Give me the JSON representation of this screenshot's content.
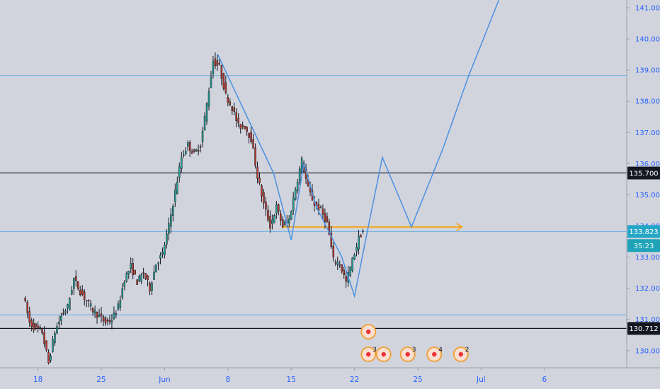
{
  "colors": {
    "background": "#d1d4dc",
    "up_candle": "#26a69a",
    "down_candle": "#c0392b",
    "wick": "#131722",
    "projection": "#4a90e2",
    "thin_level": "#6aaee6",
    "support": "#f5a623",
    "key_level": "#131722",
    "current_badge": "#26a6c6",
    "timer_badge": "#1ea3b8",
    "scale_text": "#2962ff",
    "event_fill": "#f9e0d3",
    "event_ring": "#f0a23c",
    "event_dot": "#e8323c"
  },
  "chart_data": {
    "type": "candlestick",
    "title": "",
    "x_axis": {
      "unit": "trading day index",
      "range": [
        -2,
        47.5
      ],
      "ticks": [
        {
          "x": 1,
          "label": "18"
        },
        {
          "x": 6,
          "label": "25"
        },
        {
          "x": 11,
          "label": "Jun"
        },
        {
          "x": 16,
          "label": "8"
        },
        {
          "x": 21,
          "label": "15"
        },
        {
          "x": 26,
          "label": "22"
        },
        {
          "x": 31,
          "label": "25"
        },
        {
          "x": 36,
          "label": "Jul"
        },
        {
          "x": 41,
          "label": "6"
        }
      ]
    },
    "y_axis": {
      "range": [
        129.45,
        141.25
      ],
      "ticks": [
        "130.000",
        "131.000",
        "132.000",
        "133.000",
        "134.000",
        "135.000",
        "136.000",
        "137.000",
        "138.000",
        "139.000",
        "140.000",
        "141.000"
      ]
    },
    "series": [
      {
        "type": "candlestick",
        "ohlc_anchors": [
          [
            0,
            131.8
          ],
          [
            0.5,
            130.9
          ],
          [
            1,
            130.7
          ],
          [
            1.5,
            130.6
          ],
          [
            2,
            129.6
          ],
          [
            2.5,
            130.6
          ],
          [
            3,
            131.1
          ],
          [
            3.5,
            131.4
          ],
          [
            4,
            132.3
          ],
          [
            4.5,
            131.9
          ],
          [
            5,
            131.6
          ],
          [
            5.5,
            131.3
          ],
          [
            6,
            131.1
          ],
          [
            6.5,
            130.9
          ],
          [
            7,
            131.0
          ],
          [
            7.5,
            131.4
          ],
          [
            8,
            132.3
          ],
          [
            8.5,
            132.7
          ],
          [
            9,
            132.2
          ],
          [
            9.5,
            132.5
          ],
          [
            10,
            132.0
          ],
          [
            10.5,
            132.8
          ],
          [
            11,
            133.1
          ],
          [
            11.5,
            134.0
          ],
          [
            12,
            135.1
          ],
          [
            12.5,
            136.2
          ],
          [
            13,
            136.6
          ],
          [
            13.5,
            136.3
          ],
          [
            14,
            136.6
          ],
          [
            14.5,
            137.9
          ],
          [
            15,
            139.3
          ],
          [
            15.5,
            139.1
          ],
          [
            16,
            138.2
          ],
          [
            16.5,
            137.8
          ],
          [
            17,
            137.2
          ],
          [
            17.5,
            137.2
          ],
          [
            18,
            136.8
          ],
          [
            18.5,
            135.6
          ],
          [
            19,
            134.7
          ],
          [
            19.5,
            134.0
          ],
          [
            20,
            134.6
          ],
          [
            20.5,
            134.0
          ],
          [
            21,
            134.2
          ],
          [
            21.5,
            135.2
          ],
          [
            22,
            136.1
          ],
          [
            22.5,
            135.2
          ],
          [
            23,
            134.7
          ],
          [
            23.5,
            134.5
          ],
          [
            24,
            134.1
          ],
          [
            24.5,
            132.9
          ],
          [
            25,
            132.8
          ],
          [
            25.5,
            132.2
          ],
          [
            26,
            132.9
          ],
          [
            26.5,
            133.6
          ],
          [
            26.8,
            133.85
          ]
        ]
      },
      {
        "type": "projection-path",
        "points": [
          [
            15.2,
            139.5
          ],
          [
            19.6,
            135.7
          ],
          [
            21,
            133.55
          ],
          [
            22,
            136.0
          ],
          [
            23,
            134.6
          ],
          [
            25,
            133.0
          ],
          [
            26,
            131.75
          ],
          [
            27.1,
            134.0
          ],
          [
            28.2,
            136.2
          ],
          [
            30.5,
            133.97
          ],
          [
            33,
            136.5
          ],
          [
            35,
            138.8
          ],
          [
            37.4,
            141.25
          ]
        ]
      }
    ],
    "levels": [
      {
        "value": 138.83,
        "style": "thin-blue"
      },
      {
        "value": 133.82,
        "style": "thin-blue"
      },
      {
        "value": 131.15,
        "style": "thin-blue"
      },
      {
        "value": 135.7,
        "style": "key-black",
        "label": "135.700"
      },
      {
        "value": 130.712,
        "style": "key-black",
        "label": "130.712"
      },
      {
        "value": 133.97,
        "style": "support-orange",
        "from_x": 20.25,
        "to_x": 34.5
      }
    ],
    "current_price": {
      "label": "133.823",
      "timer": "35:23"
    },
    "events": [
      {
        "x": 27.1,
        "row": 0,
        "count": ""
      },
      {
        "x": 27.1,
        "row": 1,
        "count": "3"
      },
      {
        "x": 28.3,
        "row": 1,
        "count": ""
      },
      {
        "x": 30.2,
        "row": 1,
        "count": "3"
      },
      {
        "x": 32.3,
        "row": 1,
        "count": "4"
      },
      {
        "x": 34.4,
        "row": 1,
        "count": "2"
      }
    ]
  }
}
